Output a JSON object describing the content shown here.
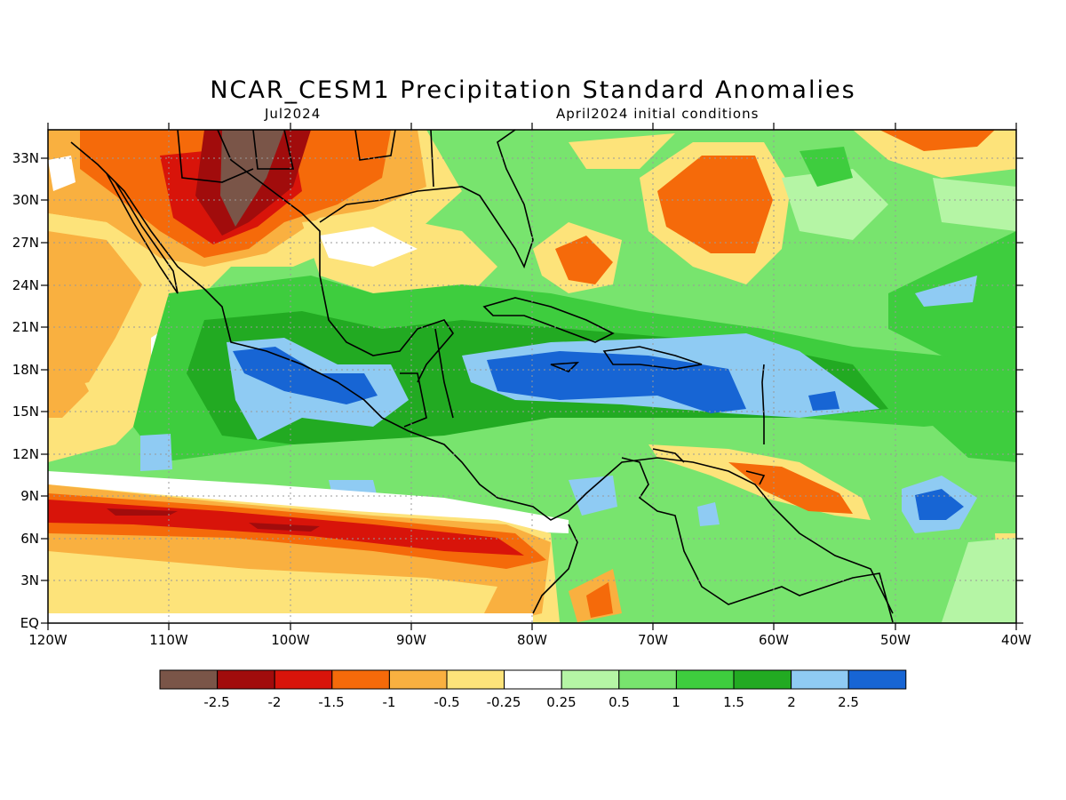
{
  "title": "NCAR_CESM1 Precipitation Standard Anomalies",
  "subtitle_left": "Jul2024",
  "subtitle_right": "April2024 initial conditions",
  "map": {
    "lon_range": [
      -120,
      -40
    ],
    "lat_range": [
      0,
      35
    ],
    "lon_ticks": [
      "120W",
      "110W",
      "100W",
      "90W",
      "80W",
      "70W",
      "60W",
      "50W",
      "40W"
    ],
    "lat_ticks": [
      "EQ",
      "3N",
      "6N",
      "9N",
      "12N",
      "15N",
      "18N",
      "21N",
      "24N",
      "27N",
      "30N",
      "33N"
    ],
    "gridlines": true
  },
  "colorbar": {
    "labels": [
      "-2.5",
      "-2",
      "-1.5",
      "-1",
      "-0.5",
      "-0.25",
      "0.25",
      "0.5",
      "1",
      "1.5",
      "2",
      "2.5"
    ],
    "colors": [
      "#7a5548",
      "#a10c0c",
      "#d8140a",
      "#f56a0a",
      "#f9b040",
      "#fde37a",
      "#ffffff",
      "#b5f5a5",
      "#78e46e",
      "#3ecd3e",
      "#22aa22",
      "#8fcbf3",
      "#1765d4"
    ]
  }
}
